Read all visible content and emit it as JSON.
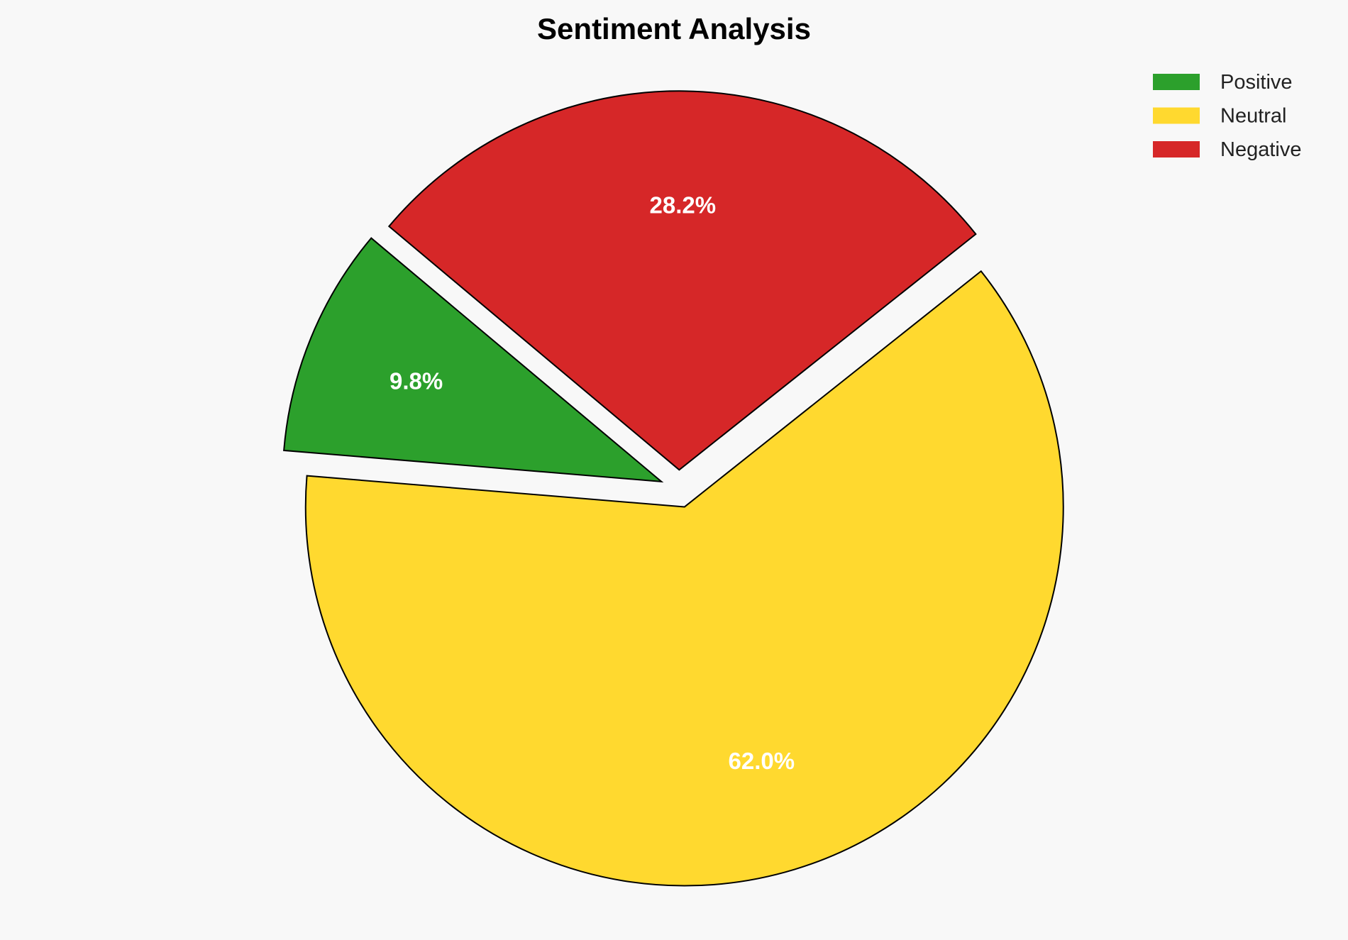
{
  "chart_data": {
    "type": "pie",
    "title": "Sentiment Analysis",
    "labels": [
      "Positive",
      "Neutral",
      "Negative"
    ],
    "values": [
      9.8,
      62.0,
      28.2
    ],
    "value_labels": [
      "9.8%",
      "62.0%",
      "28.2%"
    ],
    "colors": [
      "#2ca02c",
      "#ffd92f",
      "#d62728"
    ],
    "explode": [
      0.05,
      0.05,
      0.05
    ],
    "start_angle": 140,
    "direction": "counterclockwise",
    "edge_color": "#000000",
    "legend_position": "top-right"
  }
}
